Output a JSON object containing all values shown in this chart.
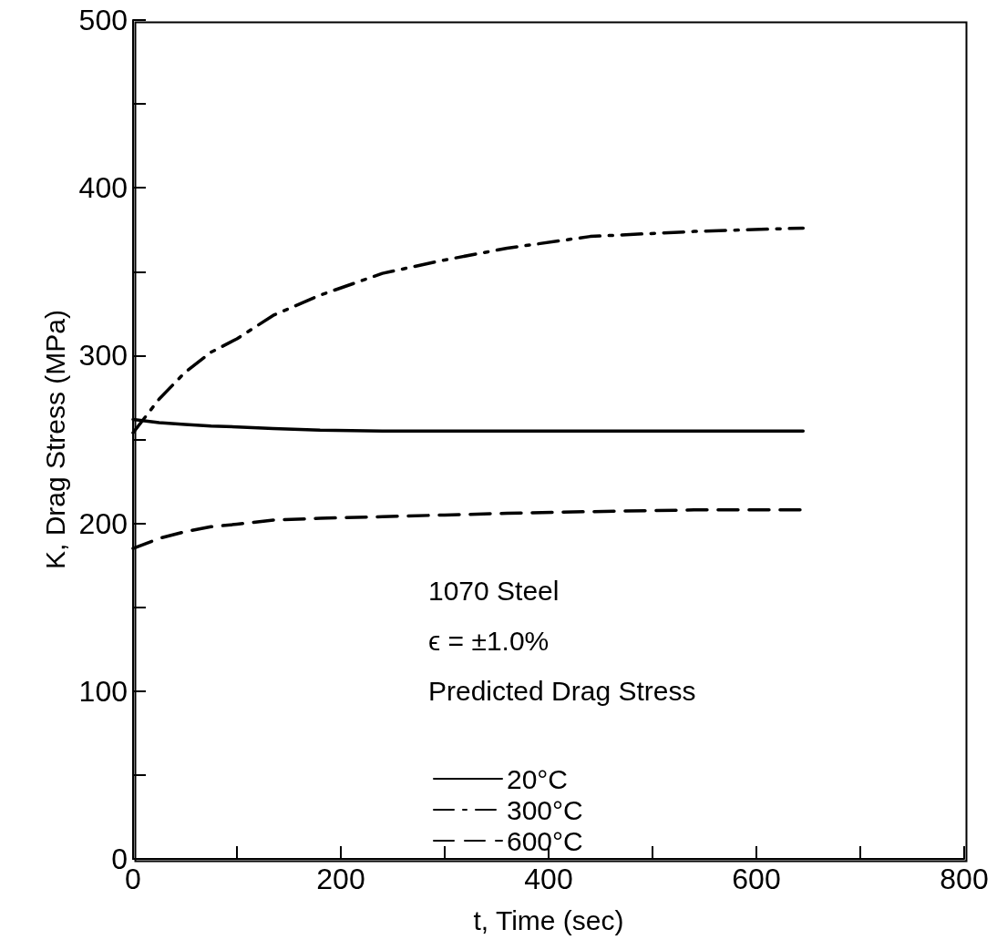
{
  "chart_data": {
    "type": "line",
    "xlabel": "t, Time (sec)",
    "ylabel": "K, Drag Stress (MPa)",
    "xlim": [
      0,
      800
    ],
    "ylim": [
      0,
      500
    ],
    "xticks": [
      0,
      {
        "value": 100,
        "label": null
      },
      200,
      {
        "value": 300,
        "label": null
      },
      400,
      {
        "value": 500,
        "label": null
      },
      600,
      {
        "value": 700,
        "label": null
      },
      800
    ],
    "yticks": [
      0,
      {
        "value": 50,
        "label": null
      },
      100,
      {
        "value": 150,
        "label": null
      },
      200,
      {
        "value": 250,
        "label": null
      },
      300,
      {
        "value": 350,
        "label": null
      },
      400,
      {
        "value": 450,
        "label": null
      },
      500
    ],
    "x": [
      0,
      25,
      50,
      75,
      100,
      135,
      180,
      240,
      300,
      360,
      440,
      540,
      645
    ],
    "series": [
      {
        "name": "20°C",
        "color": "#000000",
        "line_style": "solid",
        "values": [
          262,
          260,
          259,
          258,
          257.5,
          256.5,
          255.5,
          255,
          255,
          255,
          255,
          255,
          255
        ]
      },
      {
        "name": "300°C",
        "color": "#000000",
        "line_style": "dashdot",
        "values": [
          254,
          274,
          290,
          302,
          310,
          324,
          336,
          349,
          357,
          364,
          371,
          374,
          376
        ]
      },
      {
        "name": "600°C",
        "color": "#000000",
        "line_style": "dashed",
        "values": [
          185,
          191,
          195,
          198,
          199.5,
          202,
          203,
          204,
          205,
          206,
          207,
          208,
          208
        ]
      }
    ],
    "legend_title": "Predicted Drag Stress",
    "legend": "bottom",
    "marker": "none",
    "grid": false,
    "annotations": [
      "1070 Steel",
      "ϵ = ±1.0%"
    ]
  }
}
